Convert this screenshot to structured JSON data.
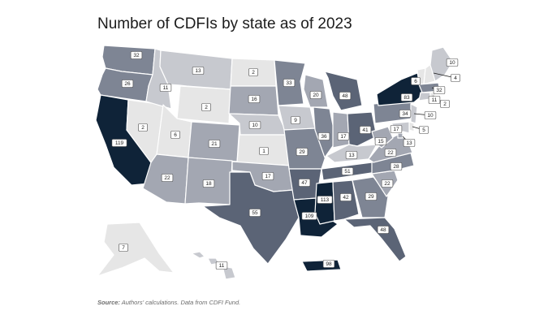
{
  "title": "Number of CDFIs by state as of 2023",
  "source": {
    "label": "Source:",
    "text": "Authors' calculations. Data from CDFI Fund."
  },
  "color_scale": {
    "lowest": "#e6e6e6",
    "low": "#c7c9cf",
    "mid_low": "#a3a7b2",
    "mid": "#7e8594",
    "high": "#5b6476",
    "highest": "#0f2338"
  },
  "states": {
    "WA": 32,
    "OR": 26,
    "CA": 119,
    "NV": 2,
    "ID": 11,
    "MT": 13,
    "WY": 2,
    "UT": 6,
    "AZ": 22,
    "CO": 21,
    "NM": 18,
    "ND": 2,
    "SD": 16,
    "NE": 10,
    "KS": 1,
    "OK": 17,
    "TX": 55,
    "MN": 33,
    "IA": 9,
    "MO": 29,
    "AR": 47,
    "LA": 109,
    "WI": 20,
    "IL": 36,
    "MI": 48,
    "IN": 17,
    "OH": 41,
    "KY": 13,
    "TN": 51,
    "MS": 113,
    "AL": 42,
    "GA": 29,
    "FL": 48,
    "SC": 22,
    "NC": 28,
    "VA": 22,
    "WV": 15,
    "PA": 34,
    "NY": 83,
    "VT": 6,
    "NH": 4,
    "ME": 10,
    "MA": 32,
    "CT": 11,
    "RI": 2,
    "NJ": 10,
    "DE": 5,
    "MD": 13,
    "DC": 17,
    "AK": 7,
    "HI": 11,
    "PR": 98
  }
}
